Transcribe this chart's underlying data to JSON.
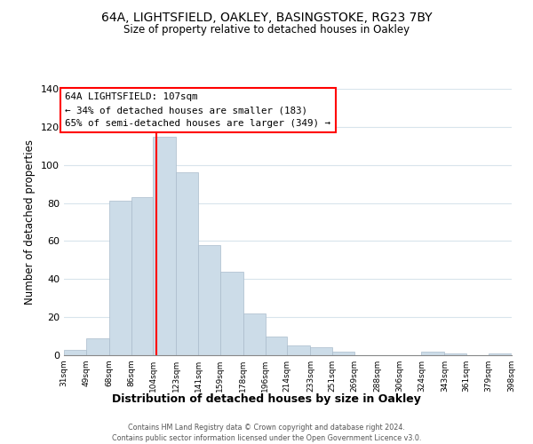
{
  "title1": "64A, LIGHTSFIELD, OAKLEY, BASINGSTOKE, RG23 7BY",
  "title2": "Size of property relative to detached houses in Oakley",
  "xlabel": "Distribution of detached houses by size in Oakley",
  "ylabel": "Number of detached properties",
  "bar_edges": [
    31,
    49,
    68,
    86,
    104,
    123,
    141,
    159,
    178,
    196,
    214,
    233,
    251,
    269,
    288,
    306,
    324,
    343,
    361,
    379,
    398
  ],
  "bar_heights": [
    3,
    9,
    81,
    83,
    115,
    96,
    58,
    44,
    22,
    10,
    5,
    4,
    2,
    0,
    0,
    0,
    2,
    1,
    0,
    1
  ],
  "bar_color": "#ccdce8",
  "bar_edgecolor": "#aabccc",
  "red_line_x": 107,
  "ylim": [
    0,
    140
  ],
  "yticks": [
    0,
    20,
    40,
    60,
    80,
    100,
    120,
    140
  ],
  "annotation_title": "64A LIGHTSFIELD: 107sqm",
  "annotation_line1": "← 34% of detached houses are smaller (183)",
  "annotation_line2": "65% of semi-detached houses are larger (349) →",
  "footer1": "Contains HM Land Registry data © Crown copyright and database right 2024.",
  "footer2": "Contains public sector information licensed under the Open Government Licence v3.0."
}
